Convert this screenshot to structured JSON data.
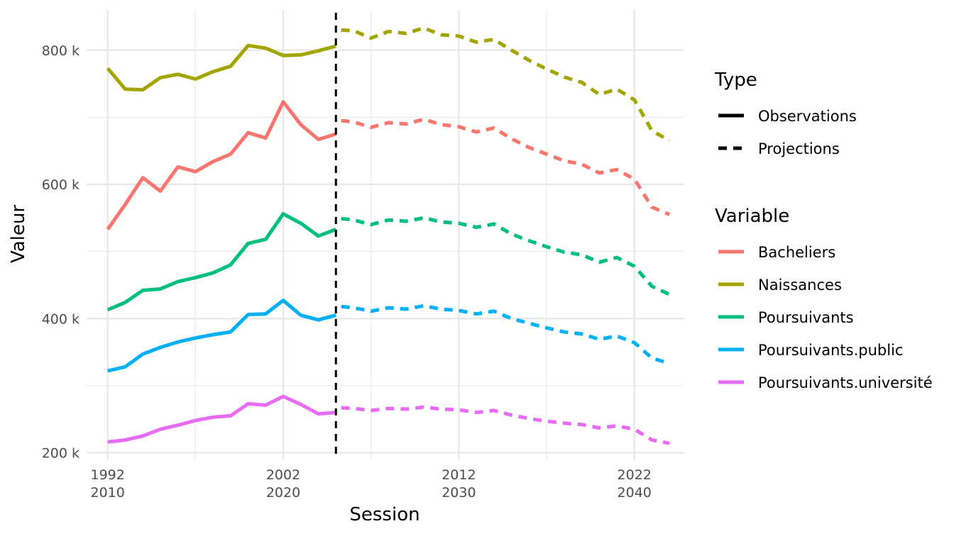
{
  "chart_data": {
    "type": "line",
    "xlabel": "Session",
    "ylabel": "Valeur",
    "xlim": [
      2008.8,
      2042.8
    ],
    "ylim": [
      190000,
      860000
    ],
    "grid": true,
    "legend_position": "right",
    "x_ticks": [
      {
        "x": 2010,
        "line1": "1992",
        "line2": "2010"
      },
      {
        "x": 2020,
        "line1": "2002",
        "line2": "2020"
      },
      {
        "x": 2030,
        "line1": "2012",
        "line2": "2030"
      },
      {
        "x": 2040,
        "line1": "2022",
        "line2": "2040"
      }
    ],
    "y_ticks": [
      {
        "y": 200000,
        "label": "200 k"
      },
      {
        "y": 400000,
        "label": "400 k"
      },
      {
        "y": 600000,
        "label": "600 k"
      },
      {
        "y": 800000,
        "label": "800 k"
      }
    ],
    "observation_cutoff": 2023,
    "legend_type": {
      "title": "Type",
      "entries": [
        {
          "label": "Observations",
          "dash": "solid"
        },
        {
          "label": "Projections",
          "dash": "dashed"
        }
      ]
    },
    "legend_variable": {
      "title": "Variable"
    },
    "series": [
      {
        "name": "Bacheliers",
        "color": "#F8766D",
        "observed": {
          "x": [
            2010,
            2011,
            2012,
            2013,
            2014,
            2015,
            2016,
            2017,
            2018,
            2019,
            2020,
            2021,
            2022,
            2023
          ],
          "y": [
            533000,
            570000,
            610000,
            590000,
            626000,
            619000,
            634000,
            645000,
            677000,
            669000,
            723000,
            689000,
            667000,
            675000
          ]
        },
        "projected": {
          "x": [
            2023.3,
            2024,
            2025,
            2026,
            2027,
            2028,
            2029,
            2030,
            2031,
            2032,
            2033,
            2034,
            2035,
            2036,
            2037,
            2038,
            2039,
            2040,
            2041,
            2042
          ],
          "y": [
            695000,
            693000,
            685000,
            692000,
            690000,
            697000,
            689000,
            686000,
            678000,
            684000,
            668000,
            655000,
            645000,
            635000,
            630000,
            617000,
            622000,
            608000,
            566000,
            555000
          ]
        }
      },
      {
        "name": "Naissances",
        "color": "#A3A500",
        "observed": {
          "x": [
            2010,
            2011,
            2012,
            2013,
            2014,
            2015,
            2016,
            2017,
            2018,
            2019,
            2020,
            2021,
            2022,
            2023
          ],
          "y": [
            773000,
            742000,
            741000,
            759000,
            764000,
            757000,
            768000,
            776000,
            807000,
            803000,
            792000,
            793000,
            799000,
            806000
          ]
        },
        "projected": {
          "x": [
            2023.3,
            2024,
            2025,
            2026,
            2027,
            2028,
            2029,
            2030,
            2031,
            2032,
            2033,
            2034,
            2035,
            2036,
            2037,
            2038,
            2039,
            2040,
            2041,
            2042
          ],
          "y": [
            830000,
            829000,
            818000,
            828000,
            825000,
            833000,
            823000,
            821000,
            812000,
            816000,
            800000,
            785000,
            772000,
            760000,
            752000,
            734000,
            742000,
            726000,
            680000,
            665000
          ]
        }
      },
      {
        "name": "Poursuivants",
        "color": "#00BF7D",
        "observed": {
          "x": [
            2010,
            2011,
            2012,
            2013,
            2014,
            2015,
            2016,
            2017,
            2018,
            2019,
            2020,
            2021,
            2022,
            2023
          ],
          "y": [
            413000,
            424000,
            442000,
            444000,
            455000,
            461000,
            468000,
            480000,
            512000,
            518000,
            556000,
            542000,
            523000,
            533000
          ]
        },
        "projected": {
          "x": [
            2023.3,
            2024,
            2025,
            2026,
            2027,
            2028,
            2029,
            2030,
            2031,
            2032,
            2033,
            2034,
            2035,
            2036,
            2037,
            2038,
            2039,
            2040,
            2041,
            2042
          ],
          "y": [
            549000,
            547000,
            540000,
            547000,
            545000,
            550000,
            544000,
            542000,
            536000,
            541000,
            526000,
            516000,
            507000,
            499000,
            495000,
            484000,
            491000,
            478000,
            448000,
            436000
          ]
        }
      },
      {
        "name": "Poursuivants.public",
        "color": "#00B0F6",
        "observed": {
          "x": [
            2010,
            2011,
            2012,
            2013,
            2014,
            2015,
            2016,
            2017,
            2018,
            2019,
            2020,
            2021,
            2022,
            2023
          ],
          "y": [
            322000,
            328000,
            347000,
            357000,
            365000,
            371000,
            376000,
            380000,
            406000,
            407000,
            427000,
            405000,
            398000,
            405000
          ]
        },
        "projected": {
          "x": [
            2023.3,
            2024,
            2025,
            2026,
            2027,
            2028,
            2029,
            2030,
            2031,
            2032,
            2033,
            2034,
            2035,
            2036,
            2037,
            2038,
            2039,
            2040,
            2041,
            2042
          ],
          "y": [
            418000,
            416000,
            411000,
            416000,
            414000,
            419000,
            414000,
            412000,
            407000,
            411000,
            400000,
            393000,
            386000,
            380000,
            377000,
            369000,
            374000,
            364000,
            341000,
            333000
          ]
        }
      },
      {
        "name": "Poursuivants.université",
        "color": "#E76BF3",
        "observed": {
          "x": [
            2010,
            2011,
            2012,
            2013,
            2014,
            2015,
            2016,
            2017,
            2018,
            2019,
            2020,
            2021,
            2022,
            2023
          ],
          "y": [
            216000,
            219000,
            225000,
            235000,
            241000,
            248000,
            253000,
            255000,
            273000,
            271000,
            284000,
            272000,
            258000,
            260000
          ]
        },
        "projected": {
          "x": [
            2023.3,
            2024,
            2025,
            2026,
            2027,
            2028,
            2029,
            2030,
            2031,
            2032,
            2033,
            2034,
            2035,
            2036,
            2037,
            2038,
            2039,
            2040,
            2041,
            2042
          ],
          "y": [
            267000,
            266000,
            263000,
            266000,
            265000,
            268000,
            265000,
            264000,
            260000,
            263000,
            256000,
            251000,
            247000,
            244000,
            242000,
            237000,
            240000,
            235000,
            219000,
            214000
          ]
        }
      }
    ]
  }
}
